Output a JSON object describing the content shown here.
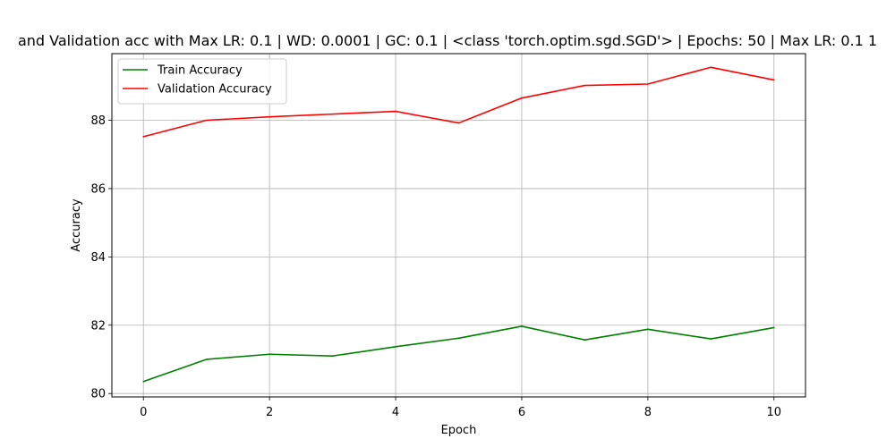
{
  "chart_data": {
    "type": "line",
    "title": "and Validation acc with Max LR: 0.1 | WD: 0.0001 | GC: 0.1 | <class 'torch.optim.sgd.SGD'> | Epochs: 50 | Max LR: 0.1 1",
    "xlabel": "Epoch",
    "ylabel": "Accuracy",
    "x": [
      0,
      1,
      2,
      3,
      4,
      5,
      6,
      7,
      8,
      9,
      10
    ],
    "xticks": [
      0,
      2,
      4,
      6,
      8,
      10
    ],
    "yticks": [
      80,
      82,
      84,
      86,
      88
    ],
    "xlim": [
      -0.5,
      10.5
    ],
    "ylim": [
      79.9,
      89.95
    ],
    "grid": true,
    "legend_position": "top-left",
    "series": [
      {
        "name": "Train Accuracy",
        "color": "#008000",
        "values": [
          80.35,
          81.0,
          81.15,
          81.1,
          81.37,
          81.62,
          81.97,
          81.57,
          81.88,
          81.6,
          81.93
        ]
      },
      {
        "name": "Validation Accuracy",
        "color": "#ff0000",
        "values": [
          87.52,
          88.0,
          88.1,
          88.18,
          88.26,
          87.92,
          88.65,
          89.02,
          89.06,
          89.55,
          89.18
        ]
      }
    ]
  }
}
